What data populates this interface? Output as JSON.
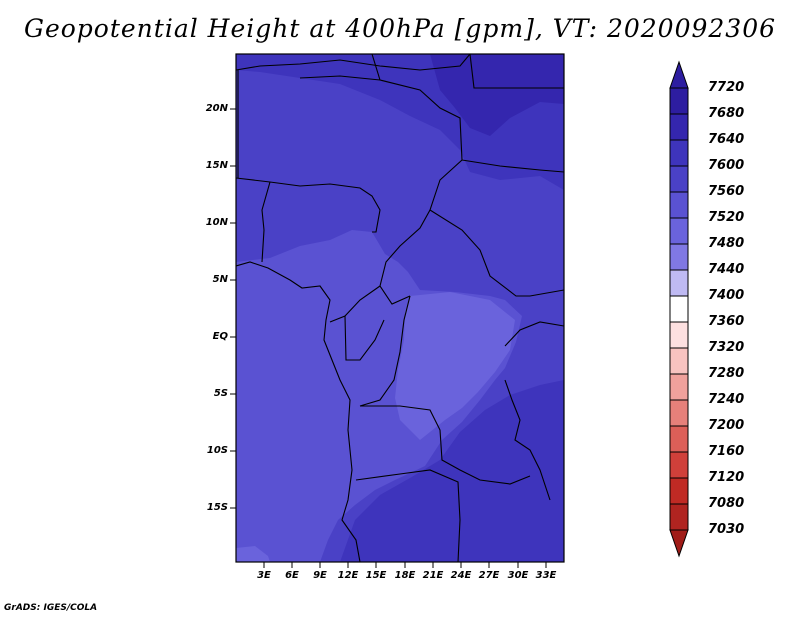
{
  "title": "Geopotential Height at 400hPa [gpm], VT: 2020092306",
  "credit": "GrADS: IGES/COLA",
  "map": {
    "lat_labels": [
      "20N",
      "15N",
      "10N",
      "5N",
      "EQ",
      "5S",
      "10S",
      "15S"
    ],
    "lon_labels": [
      "3E",
      "6E",
      "9E",
      "12E",
      "15E",
      "18E",
      "21E",
      "24E",
      "27E",
      "30E",
      "33E"
    ],
    "lat_range": [
      -19.5,
      24.5
    ],
    "lon_range": [
      0.5,
      35
    ]
  },
  "colorbar": {
    "labels": [
      "7720",
      "7680",
      "7640",
      "7600",
      "7560",
      "7520",
      "7480",
      "7440",
      "7400",
      "7360",
      "7320",
      "7280",
      "7240",
      "7200",
      "7160",
      "7120",
      "7080",
      "7030"
    ],
    "colors": [
      "#2d1da0",
      "#3426ae",
      "#3e34bc",
      "#4a41c6",
      "#5a52d2",
      "#6a63dc",
      "#8078e4",
      "#9e98ec",
      "#bfbaf3",
      "#dcd9f9",
      "#ffffff",
      "#fde0e0",
      "#f8c3c0",
      "#f0a19c",
      "#e6807a",
      "#dc5f58",
      "#d0403a",
      "#c02a24",
      "#a01c18"
    ]
  }
}
